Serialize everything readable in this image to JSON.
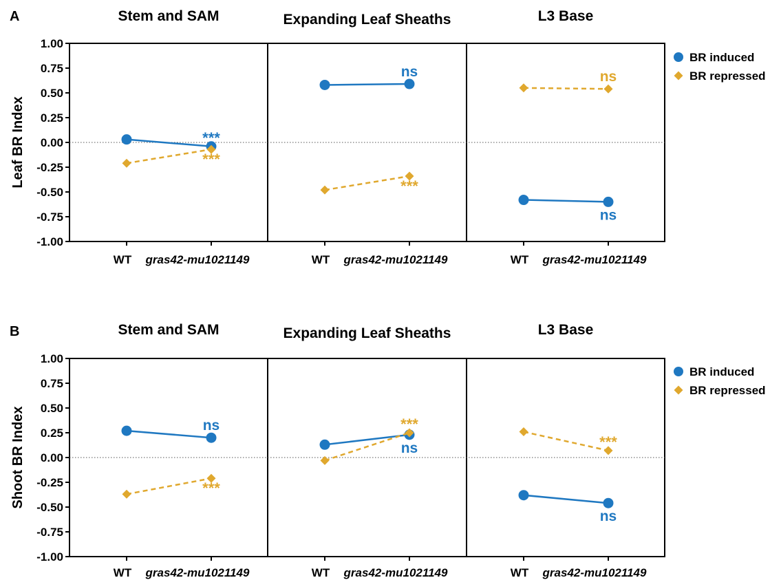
{
  "colors": {
    "induced": "#1f78c1",
    "repressed": "#e0a82e",
    "axis": "#000000",
    "zero_line": "#555555"
  },
  "legend": {
    "induced_label": "BR induced",
    "repressed_label": "BR repressed",
    "induced_marker": "circle",
    "repressed_marker": "diamond",
    "placement": "right"
  },
  "chart_data": [
    {
      "type": "line",
      "panel_label": "A",
      "ylabel": "Leaf BR Index",
      "ylim": [
        -1.0,
        1.0
      ],
      "yticks": [
        "1.00",
        "0.75",
        "0.50",
        "0.25",
        "0.00",
        "-0.25",
        "-0.50",
        "-0.75",
        "-1.00"
      ],
      "zero_line": "dotted",
      "categories": [
        "WT",
        "gras42-mu1021149"
      ],
      "facets": [
        {
          "title": "Stem and SAM",
          "series": [
            {
              "name": "BR induced",
              "values": [
                0.03,
                -0.04
              ],
              "annotation": "***"
            },
            {
              "name": "BR repressed",
              "values": [
                -0.21,
                -0.07
              ],
              "annotation": "***"
            }
          ]
        },
        {
          "title": "Expanding Leaf Sheaths",
          "series": [
            {
              "name": "BR induced",
              "values": [
                0.58,
                0.59
              ],
              "annotation": "ns"
            },
            {
              "name": "BR repressed",
              "values": [
                -0.48,
                -0.34
              ],
              "annotation": "***"
            }
          ]
        },
        {
          "title": "L3 Base",
          "series": [
            {
              "name": "BR induced",
              "values": [
                -0.58,
                -0.6
              ],
              "annotation": "ns"
            },
            {
              "name": "BR repressed",
              "values": [
                0.55,
                0.54
              ],
              "annotation": "ns"
            }
          ]
        }
      ]
    },
    {
      "type": "line",
      "panel_label": "B",
      "ylabel": "Shoot BR Index",
      "ylim": [
        -1.0,
        1.0
      ],
      "yticks": [
        "1.00",
        "0.75",
        "0.50",
        "0.25",
        "0.00",
        "-0.25",
        "-0.50",
        "-0.75",
        "-1.00"
      ],
      "zero_line": "dotted",
      "categories": [
        "WT",
        "gras42-mu1021149"
      ],
      "facets": [
        {
          "title": "Stem and SAM",
          "series": [
            {
              "name": "BR induced",
              "values": [
                0.27,
                0.2
              ],
              "annotation": "ns"
            },
            {
              "name": "BR repressed",
              "values": [
                -0.37,
                -0.21
              ],
              "annotation": "***"
            }
          ]
        },
        {
          "title": "Expanding Leaf Sheaths",
          "series": [
            {
              "name": "BR induced",
              "values": [
                0.13,
                0.23
              ],
              "annotation": "ns"
            },
            {
              "name": "BR repressed",
              "values": [
                -0.03,
                0.25
              ],
              "annotation": "***"
            }
          ]
        },
        {
          "title": "L3 Base",
          "series": [
            {
              "name": "BR induced",
              "values": [
                -0.38,
                -0.46
              ],
              "annotation": "ns"
            },
            {
              "name": "BR repressed",
              "values": [
                0.26,
                0.07
              ],
              "annotation": "***"
            }
          ]
        }
      ]
    }
  ]
}
